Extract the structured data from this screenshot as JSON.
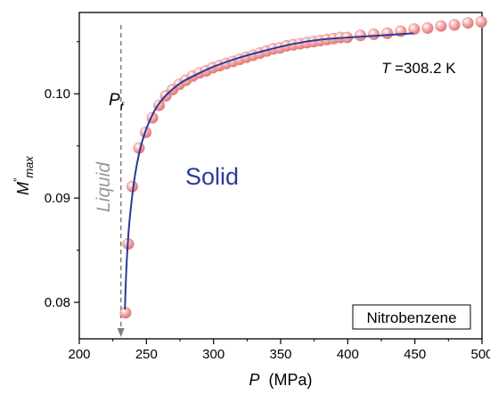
{
  "chart_data": {
    "type": "scatter",
    "xlabel": {
      "symbol": "P",
      "unit": "(MPa)"
    },
    "ylabel": {
      "symbol": "M",
      "superscript": "″",
      "subscript": "max"
    },
    "xlim": [
      200,
      500
    ],
    "ylim": [
      0.0765,
      0.1078
    ],
    "xticks": [
      "200",
      "250",
      "300",
      "350",
      "400",
      "450",
      "500"
    ],
    "yticks": [
      "0.08",
      "0.09",
      "0.10"
    ],
    "series": [
      {
        "x": [
          234.5,
          236.5,
          239.5,
          244.5,
          249.5,
          254.5,
          259.5,
          264.5,
          269.5,
          274.5,
          279.5,
          284.5,
          289.5,
          294.5,
          299.5,
          304.5,
          309.5,
          314.5,
          319.5,
          324.5,
          329.5,
          334.5,
          339.5,
          344.5,
          349.5,
          354.5,
          359.5,
          364.5,
          369.5,
          374.5,
          379.5,
          384.5,
          389.5,
          394.5,
          399.5,
          409.5,
          419.5,
          429.5,
          439.5,
          449.5,
          459.5,
          469.5,
          479.5,
          489.5,
          499.5
        ],
        "y": [
          0.079,
          0.0856,
          0.0911,
          0.0948,
          0.0963,
          0.0977,
          0.0989,
          0.0998,
          0.1004,
          0.1009,
          0.1013,
          0.1017,
          0.102,
          0.1022,
          0.1025,
          0.1027,
          0.1029,
          0.1031,
          0.1033,
          0.1035,
          0.1037,
          0.1039,
          0.1041,
          0.1043,
          0.1044,
          0.1046,
          0.1047,
          0.1048,
          0.1049,
          0.105,
          0.1051,
          0.1052,
          0.1053,
          0.1054,
          0.1054,
          0.1056,
          0.1057,
          0.1058,
          0.106,
          0.1062,
          0.1063,
          0.1065,
          0.1066,
          0.1068,
          0.1069
        ],
        "color": "#f08e8e"
      }
    ],
    "fit": {
      "x": [
        234,
        235,
        237,
        240,
        243,
        247,
        252,
        258,
        265,
        275,
        285,
        300,
        320,
        340,
        360,
        380,
        400,
        425,
        449
      ],
      "y": [
        0.0793,
        0.083,
        0.0872,
        0.0908,
        0.0933,
        0.0955,
        0.0973,
        0.0988,
        0.0999,
        0.101,
        0.1017,
        0.1026,
        0.1035,
        0.1042,
        0.1048,
        0.1052,
        0.1054,
        0.1056,
        0.1058
      ],
      "color": "#2b3a99"
    },
    "pf_line": {
      "x": 231,
      "color": "#808080"
    }
  },
  "annotations": {
    "pf": {
      "symbol": "P",
      "subscript": "f"
    },
    "liquid": "Liquid",
    "solid": "Solid",
    "temperature": {
      "symbol": "T",
      "text": " =308.2 K"
    },
    "legend_box": "Nitrobenzene"
  }
}
